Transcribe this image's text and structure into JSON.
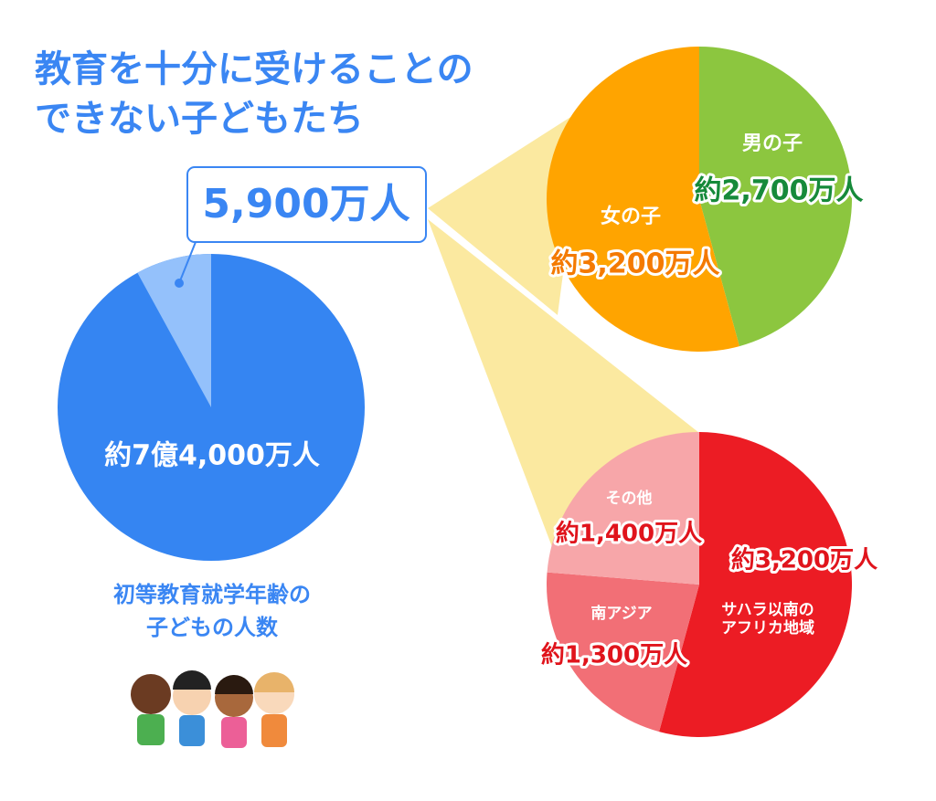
{
  "title": [
    "教育を十分に受けることの",
    "できない子どもたち"
  ],
  "chart_data": [
    {
      "type": "pie",
      "total": 740000000,
      "total_label": "約7億4,000万人",
      "total_color": "#3585f2",
      "highlight": 59000000,
      "highlight_label": "5,900万人",
      "highlight_color": "#94c1fb",
      "caption": [
        "初等教育就学年齢の",
        "子どもの人数"
      ]
    },
    {
      "type": "pie",
      "categories": [
        "男の子",
        "女の子"
      ],
      "values": [
        27000000,
        32000000
      ],
      "value_labels": [
        "約2,700万人",
        "約3,200万人"
      ],
      "colors": [
        "#8cc63f",
        "#ffa400"
      ],
      "label_colors": [
        "#168a3a",
        "#f47a00"
      ]
    },
    {
      "type": "pie",
      "categories": [
        "サハラ以南の\nアフリカ地域",
        "南アジア",
        "その他"
      ],
      "values": [
        32000000,
        13000000,
        14000000
      ],
      "value_labels": [
        "約3,200万人",
        "約1,300万人",
        "約1,400万人"
      ],
      "colors": [
        "#ec1c24",
        "#f26f76",
        "#f7a6a9"
      ],
      "label_colors": [
        "#e0141c",
        "#e0141c",
        "#e0141c"
      ]
    }
  ]
}
